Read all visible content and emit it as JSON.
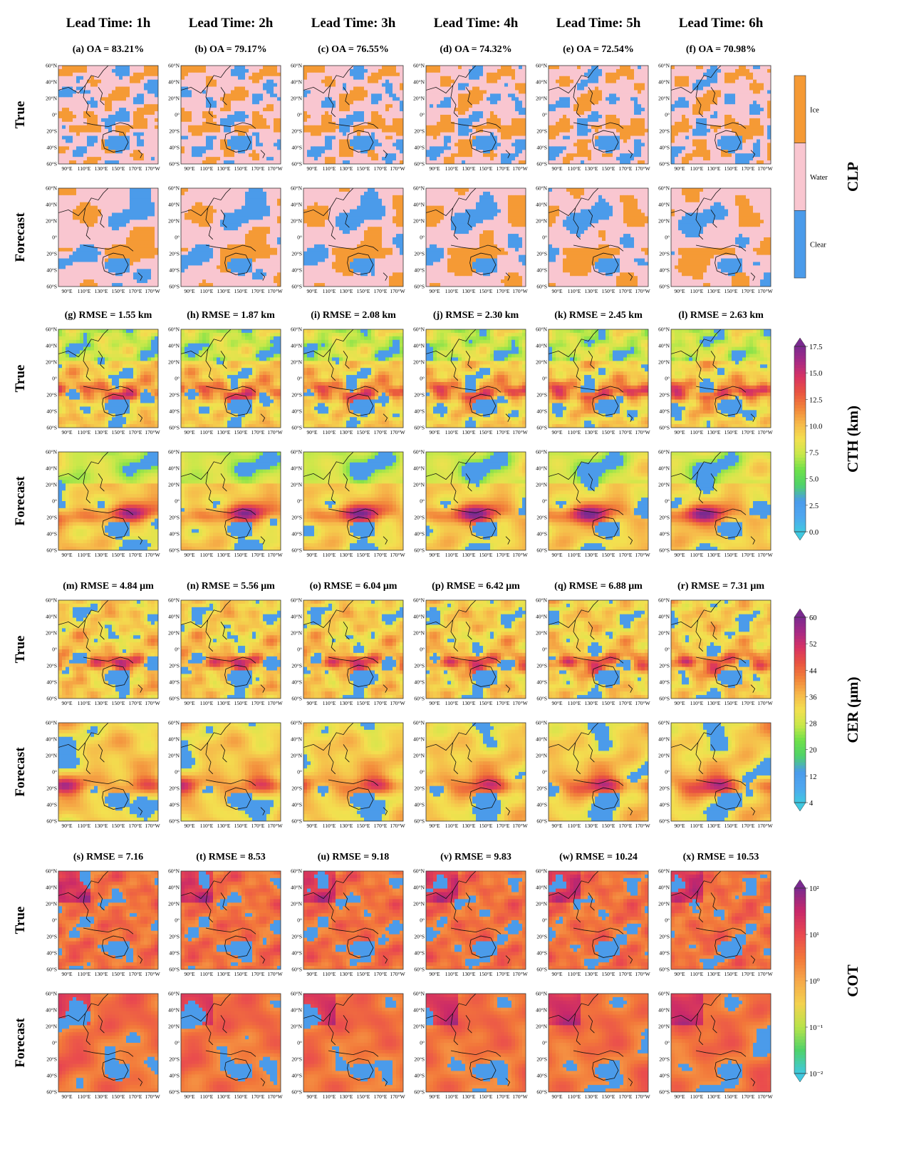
{
  "figure": {
    "column_headers": [
      "Lead Time: 1h",
      "Lead Time: 2h",
      "Lead Time: 3h",
      "Lead Time: 4h",
      "Lead Time: 5h",
      "Lead Time: 6h"
    ],
    "row_labels": {
      "true": "True",
      "forecast": "Forecast"
    },
    "x_tick_labels": [
      "90°E",
      "110°E",
      "130°E",
      "150°E",
      "170°E",
      "170°W"
    ],
    "y_tick_labels": [
      "60°N",
      "40°N",
      "20°N",
      "0°",
      "20°S",
      "40°S",
      "60°S"
    ]
  },
  "chart_data": [
    {
      "type": "heatmap",
      "variable": "CLP",
      "colorbar_label": "CLP",
      "colorbar_type": "categorical",
      "categories": [
        "Clear",
        "Water",
        "Ice"
      ],
      "category_colors": [
        "#4b9bea",
        "#f9c6d0",
        "#f59a35"
      ],
      "panel_titles": [
        "(a) OA = 83.21%",
        "(b) OA = 79.17%",
        "(c) OA = 76.55%",
        "(d) OA = 74.32%",
        "(e) OA = 72.54%",
        "(f) OA = 70.98%"
      ],
      "metric": "OA",
      "metric_values": [
        83.21,
        79.17,
        76.55,
        74.32,
        72.54,
        70.98
      ],
      "metric_unit": "%",
      "lead_times_h": [
        1,
        2,
        3,
        4,
        5,
        6
      ]
    },
    {
      "type": "heatmap",
      "variable": "CTH",
      "colorbar_label": "CTH (km)",
      "colorbar_type": "continuous",
      "colorbar_ticks": [
        "0.0",
        "2.5",
        "5.0",
        "7.5",
        "10.0",
        "12.5",
        "15.0",
        "17.5"
      ],
      "colorbar_range": [
        0,
        17.5
      ],
      "panel_titles": [
        "(g) RMSE = 1.55 km",
        "(h) RMSE = 1.87 km",
        "(i) RMSE = 2.08 km",
        "(j) RMSE = 2.30 km",
        "(k) RMSE = 2.45 km",
        "(l) RMSE = 2.63 km"
      ],
      "metric": "RMSE",
      "metric_values": [
        1.55,
        1.87,
        2.08,
        2.3,
        2.45,
        2.63
      ],
      "metric_unit": "km",
      "lead_times_h": [
        1,
        2,
        3,
        4,
        5,
        6
      ]
    },
    {
      "type": "heatmap",
      "variable": "CER",
      "colorbar_label": "CER (μm)",
      "colorbar_type": "continuous",
      "colorbar_ticks": [
        "4",
        "12",
        "20",
        "28",
        "36",
        "44",
        "52",
        "60"
      ],
      "colorbar_range": [
        4,
        60
      ],
      "panel_titles": [
        "(m) RMSE = 4.84 μm",
        "(n) RMSE = 5.56 μm",
        "(o) RMSE = 6.04 μm",
        "(p) RMSE = 6.42 μm",
        "(q) RMSE = 6.88 μm",
        "(r) RMSE = 7.31 μm"
      ],
      "metric": "RMSE",
      "metric_values": [
        4.84,
        5.56,
        6.04,
        6.42,
        6.88,
        7.31
      ],
      "metric_unit": "μm",
      "lead_times_h": [
        1,
        2,
        3,
        4,
        5,
        6
      ]
    },
    {
      "type": "heatmap",
      "variable": "COT",
      "colorbar_label": "COT",
      "colorbar_type": "log",
      "colorbar_ticks": [
        "10⁻²",
        "10⁻¹",
        "10⁰",
        "10¹",
        "10²"
      ],
      "colorbar_range": [
        0.01,
        100
      ],
      "panel_titles": [
        "(s) RMSE = 7.16",
        "(t) RMSE = 8.53",
        "(u) RMSE = 9.18",
        "(v) RMSE = 9.83",
        "(w) RMSE = 10.24",
        "(x) RMSE = 10.53"
      ],
      "metric": "RMSE",
      "metric_values": [
        7.16,
        8.53,
        9.18,
        9.83,
        10.24,
        10.53
      ],
      "metric_unit": "",
      "lead_times_h": [
        1,
        2,
        3,
        4,
        5,
        6
      ]
    }
  ]
}
